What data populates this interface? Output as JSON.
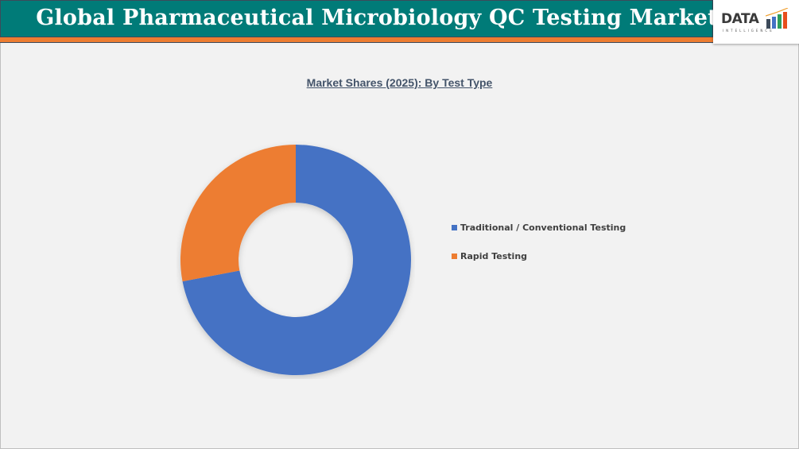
{
  "header": {
    "title": "Global Pharmaceutical Microbiology QC Testing Market",
    "bar_color": "#007b78",
    "accent_color": "#ed7d31",
    "logo": {
      "text": "DATA",
      "subtext": "INTELLIGENCE"
    }
  },
  "chart": {
    "title": "Market Shares (2025): By Test Type"
  },
  "legend": {
    "items": [
      {
        "label": "Traditional / Conventional Testing",
        "color": "#4472c4"
      },
      {
        "label": "Rapid Testing",
        "color": "#ed7d31"
      }
    ]
  },
  "chart_data": {
    "type": "pie",
    "subtype": "donut",
    "title": "Market Shares (2025): By Test Type",
    "categories": [
      "Traditional / Conventional Testing",
      "Rapid Testing"
    ],
    "values": [
      72,
      28
    ],
    "colors": [
      "#4472c4",
      "#ed7d31"
    ],
    "units": "% share (estimated from slice angles; no data labels shown)",
    "start_angle_deg": 0,
    "direction": "clockwise",
    "legend_position": "right",
    "data_labels": false
  }
}
